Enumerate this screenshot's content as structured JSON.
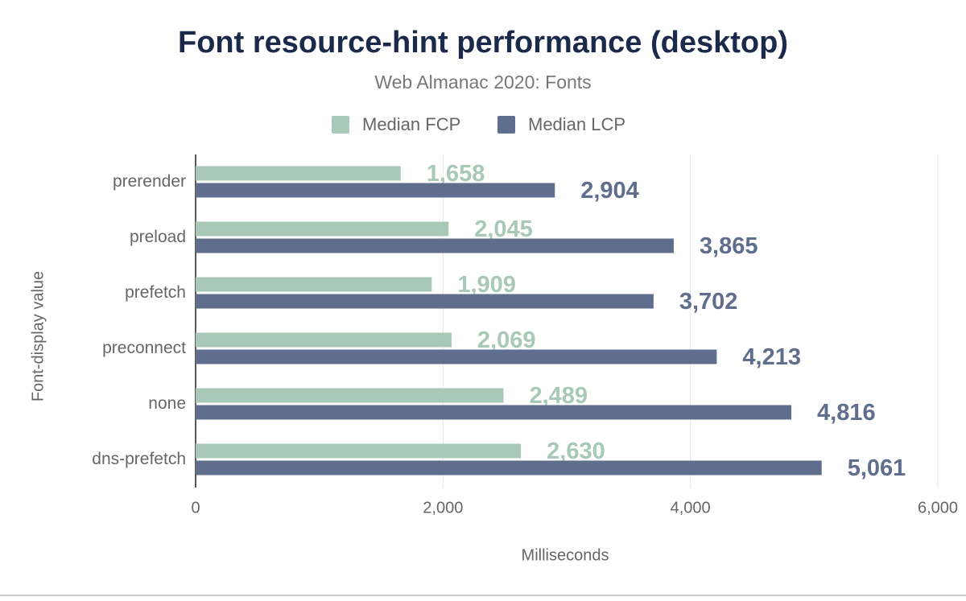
{
  "chart_data": {
    "type": "hbar",
    "title": "Font resource-hint performance (desktop)",
    "subtitle": "Web Almanac 2020: Fonts",
    "x_label": "Milliseconds",
    "y_label": "Font-display value",
    "categories": [
      "prerender",
      "preload",
      "prefetch",
      "preconnect",
      "none",
      "dns-prefetch"
    ],
    "series": [
      {
        "name": "Median FCP",
        "color": "#a8c9b8",
        "values": [
          1658,
          2045,
          1909,
          2069,
          2489,
          2630
        ],
        "value_labels": [
          "1,658",
          "2,045",
          "1,909",
          "2,069",
          "2,489",
          "2,630"
        ]
      },
      {
        "name": "Median LCP",
        "color": "#5f6e8c",
        "values": [
          2904,
          3865,
          3702,
          4213,
          4816,
          5061
        ],
        "value_labels": [
          "2,904",
          "3,865",
          "3,702",
          "4,213",
          "4,816",
          "5,061"
        ]
      }
    ],
    "xlim": [
      0,
      6000
    ],
    "xticks": [
      0,
      {
        "value": 2000,
        "label": "2,000"
      },
      {
        "value": 4000,
        "label": "4,000"
      },
      {
        "value": 6000,
        "label": "6,000"
      }
    ],
    "grid": true,
    "legend": "top"
  }
}
